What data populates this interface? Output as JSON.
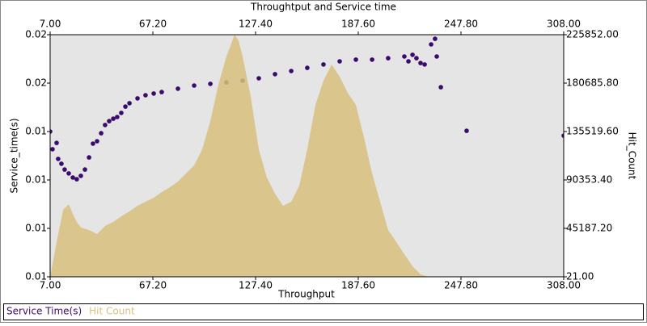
{
  "chart_data": {
    "type": "combo",
    "title": "Throughtput and Service time",
    "x_label": "Throughput",
    "y_label": "Service_time(s)",
    "y2_label": "Hit_Count",
    "xlim": [
      7,
      308
    ],
    "xticks": [
      {
        "value": 7,
        "label": "7.00"
      },
      {
        "value": 67.2,
        "label": "67.20"
      },
      {
        "value": 127.4,
        "label": "127.40"
      },
      {
        "value": 187.6,
        "label": "187.60"
      },
      {
        "value": 247.8,
        "label": "247.80"
      },
      {
        "value": 308,
        "label": "308.00"
      }
    ],
    "ylim": [
      0.0075,
      0.0175
    ],
    "yticks": [
      {
        "value": 0.0075,
        "label": "0.01"
      },
      {
        "value": 0.0095,
        "label": "0.01"
      },
      {
        "value": 0.0115,
        "label": "0.01"
      },
      {
        "value": 0.0135,
        "label": "0.01"
      },
      {
        "value": 0.0155,
        "label": "0.02"
      },
      {
        "value": 0.0175,
        "label": "0.02"
      }
    ],
    "y2lim": [
      21,
      225852
    ],
    "y2ticks": [
      {
        "value": 21,
        "label": "21.00"
      },
      {
        "value": 45187.2,
        "label": "45187.20"
      },
      {
        "value": 90353.4,
        "label": "90353.40"
      },
      {
        "value": 135519.6,
        "label": "135519.60"
      },
      {
        "value": 180685.8,
        "label": "180685.80"
      },
      {
        "value": 225852,
        "label": "225852.00"
      }
    ],
    "series": [
      {
        "name": "Service Time(s)",
        "type": "scatter",
        "color": "#3b0a6e",
        "x": [
          7.0,
          8.4,
          10.8,
          11.7,
          13.6,
          15.5,
          17.9,
          20.3,
          22.6,
          25.0,
          27.4,
          29.8,
          32.1,
          34.5,
          36.9,
          39.2,
          41.6,
          44.0,
          46.3,
          48.7,
          51.1,
          53.5,
          58.2,
          62.9,
          67.7,
          72.4,
          81.9,
          91.4,
          100.9,
          110.3,
          119.8,
          129.3,
          138.8,
          148.3,
          157.7,
          167.2,
          176.7,
          186.2,
          195.7,
          205.1,
          214.6,
          217.0,
          219.4,
          221.7,
          224.1,
          226.5,
          227.9,
          230.3,
          232.6,
          233.6,
          236.0,
          251.1,
          308.0
        ],
        "values": [
          0.0135,
          0.01277,
          0.01303,
          0.01237,
          0.01217,
          0.01193,
          0.01177,
          0.0116,
          0.01153,
          0.01167,
          0.01193,
          0.01243,
          0.013,
          0.0131,
          0.01343,
          0.01377,
          0.01393,
          0.01403,
          0.0141,
          0.01427,
          0.01453,
          0.01467,
          0.01487,
          0.015,
          0.01507,
          0.01513,
          0.01527,
          0.0154,
          0.01547,
          0.01553,
          0.0156,
          0.0157,
          0.01587,
          0.016,
          0.01613,
          0.01627,
          0.0164,
          0.01647,
          0.01647,
          0.01653,
          0.0166,
          0.0164,
          0.01667,
          0.01653,
          0.01633,
          0.01627,
          0.01767,
          0.0171,
          0.01733,
          0.0166,
          0.01533,
          0.01353,
          0.01333
        ]
      },
      {
        "name": "Hit Count",
        "type": "area",
        "axis": "y2",
        "color": "#d8c17e",
        "x": [
          7.0,
          10.8,
          14.6,
          17.9,
          20.3,
          22.6,
          25.0,
          29.8,
          34.5,
          39.2,
          44.0,
          48.7,
          53.5,
          58.2,
          62.9,
          67.7,
          72.4,
          77.2,
          81.9,
          86.6,
          91.4,
          96.1,
          100.9,
          105.6,
          110.3,
          115.1,
          117.4,
          119.8,
          124.6,
          129.3,
          134.0,
          138.8,
          143.5,
          148.3,
          153.0,
          157.7,
          162.5,
          167.2,
          172.0,
          176.7,
          181.4,
          186.2,
          190.9,
          195.7,
          200.4,
          205.1,
          209.9,
          214.6,
          219.4,
          224.1,
          228.8
        ],
        "values": [
          21,
          32412,
          62482,
          67773,
          58738,
          51211,
          45940,
          43682,
          39918,
          47446,
          51211,
          56480,
          61000,
          66267,
          70028,
          73794,
          79062,
          83580,
          88848,
          96375,
          103903,
          118962,
          145305,
          179180,
          205528,
          225852,
          220585,
          205528,
          167889,
          118962,
          92612,
          77556,
          66267,
          70028,
          85083,
          118962,
          160362,
          182946,
          197999,
          186709,
          171652,
          160362,
          130253,
          96375,
          70028,
          43682,
          32412,
          21099,
          9807,
          2279,
          21
        ]
      }
    ]
  }
}
